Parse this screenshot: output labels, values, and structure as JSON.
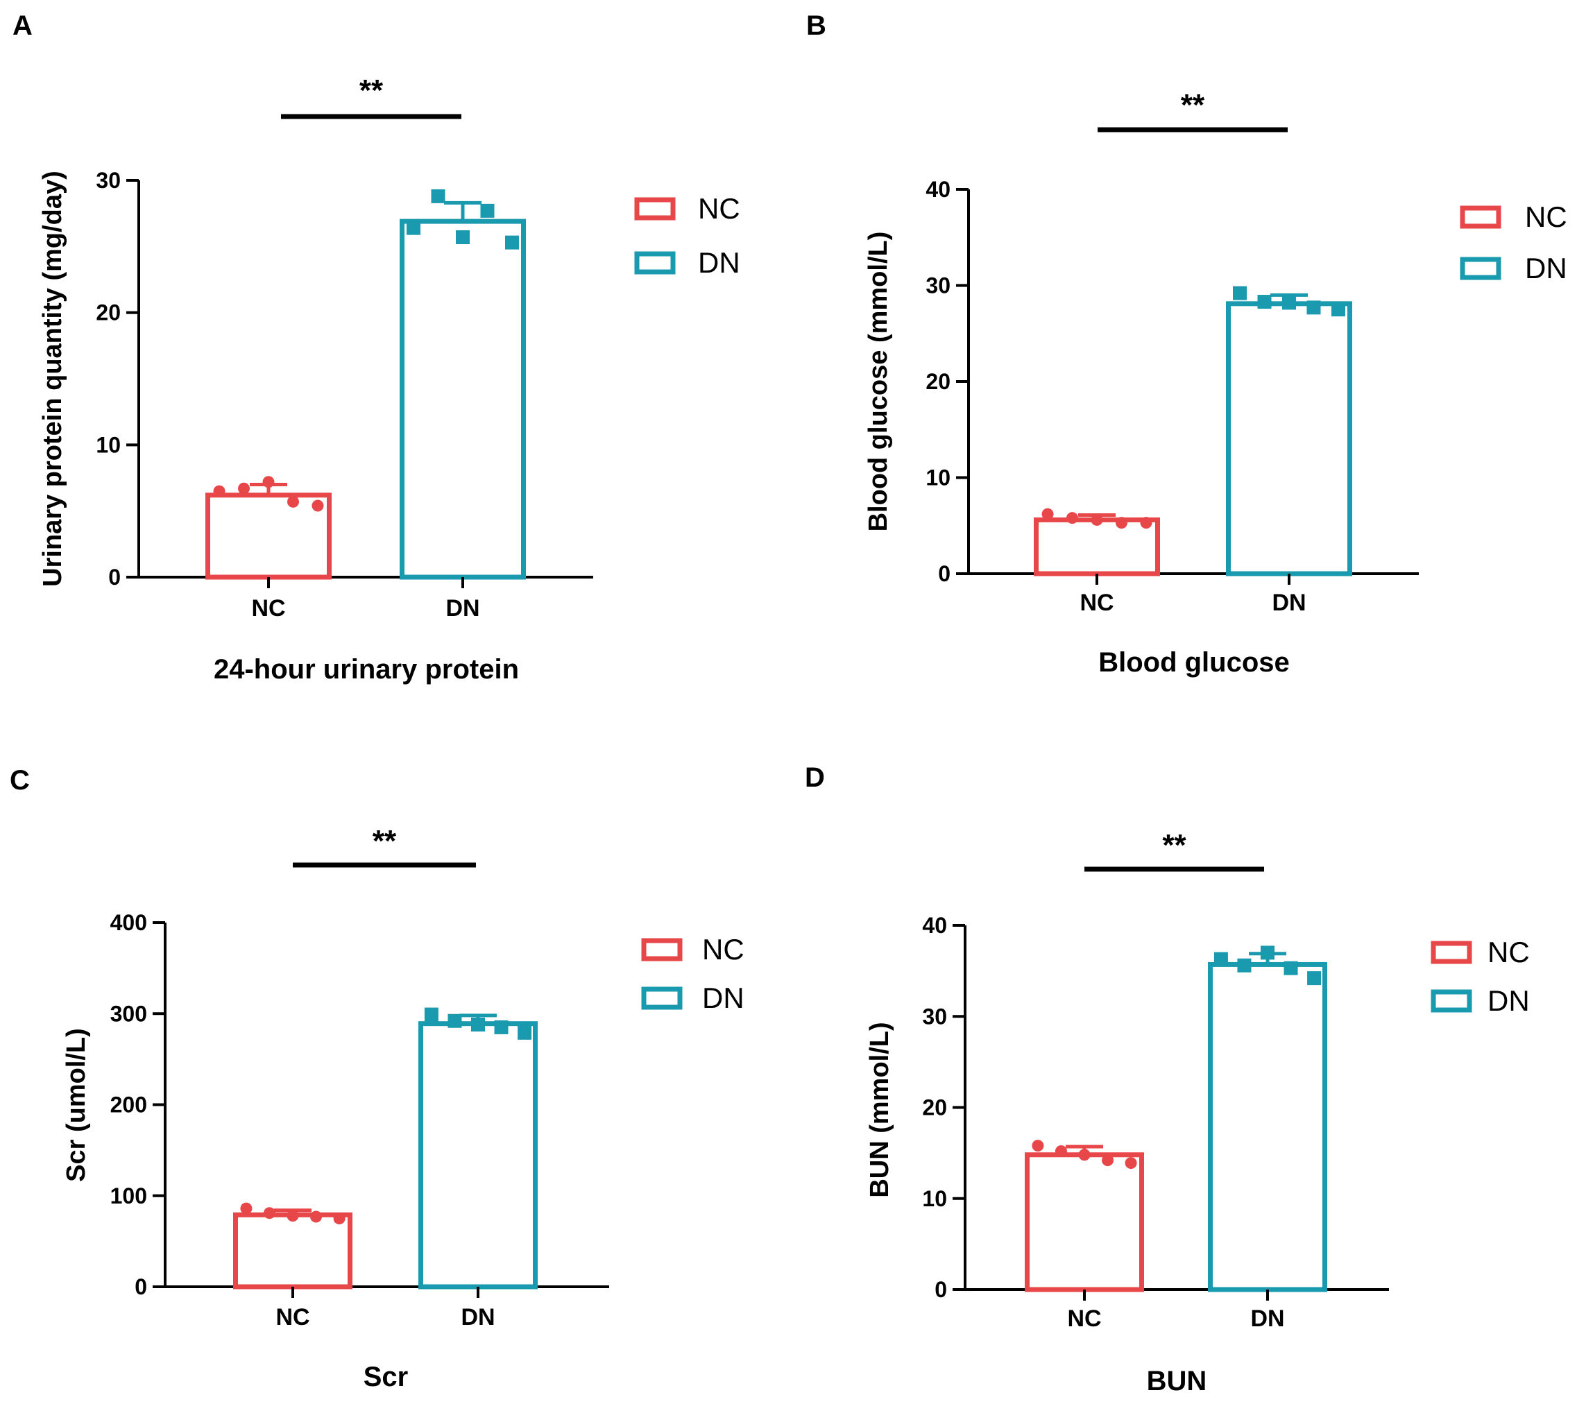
{
  "colors": {
    "NC": "#E8474A",
    "DN": "#1A9AAE",
    "axis": "#000000"
  },
  "chart_data": [
    {
      "panel": "A",
      "type": "bar",
      "title": "24-hour urinary protein",
      "ylabel": "Urinary protein quantity (mg/day)",
      "ylim": [
        0,
        30
      ],
      "yticks": [
        0,
        10,
        20,
        30
      ],
      "categories": [
        "NC",
        "DN"
      ],
      "significance": "**",
      "legend": [
        "NC",
        "DN"
      ],
      "series": [
        {
          "name": "NC",
          "mean": 6.2,
          "sd": 0.8,
          "points": [
            6.5,
            6.7,
            7.2,
            5.7,
            5.4
          ]
        },
        {
          "name": "DN",
          "mean": 26.9,
          "sd": 1.4,
          "points": [
            26.4,
            28.8,
            25.7,
            27.7,
            25.3
          ]
        }
      ]
    },
    {
      "panel": "B",
      "type": "bar",
      "title": "Blood glucose",
      "ylabel": "Blood glucose (mmol/L)",
      "ylim": [
        0,
        40
      ],
      "yticks": [
        0,
        10,
        20,
        30,
        40
      ],
      "categories": [
        "NC",
        "DN"
      ],
      "significance": "**",
      "legend": [
        "NC",
        "DN"
      ],
      "series": [
        {
          "name": "NC",
          "mean": 5.6,
          "sd": 0.5,
          "points": [
            6.2,
            5.8,
            5.6,
            5.3,
            5.3
          ]
        },
        {
          "name": "DN",
          "mean": 28.1,
          "sd": 0.9,
          "points": [
            29.2,
            28.3,
            28.2,
            27.7,
            27.5
          ]
        }
      ]
    },
    {
      "panel": "C",
      "type": "bar",
      "title": "Scr",
      "ylabel": "Scr (umol/L)",
      "ylim": [
        0,
        400
      ],
      "yticks": [
        0,
        100,
        200,
        300,
        400
      ],
      "categories": [
        "NC",
        "DN"
      ],
      "significance": "**",
      "legend": [
        "NC",
        "DN"
      ],
      "series": [
        {
          "name": "NC",
          "mean": 79,
          "sd": 5,
          "points": [
            86,
            81,
            78,
            77,
            75
          ]
        },
        {
          "name": "DN",
          "mean": 289,
          "sd": 9,
          "points": [
            299,
            292,
            288,
            285,
            279
          ]
        }
      ]
    },
    {
      "panel": "D",
      "type": "bar",
      "title": "BUN",
      "ylabel": "BUN (mmol/L)",
      "ylim": [
        0,
        40
      ],
      "yticks": [
        0,
        10,
        20,
        30,
        40
      ],
      "categories": [
        "NC",
        "DN"
      ],
      "significance": "**",
      "legend": [
        "NC",
        "DN"
      ],
      "series": [
        {
          "name": "NC",
          "mean": 14.8,
          "sd": 0.9,
          "points": [
            15.8,
            15.2,
            14.8,
            14.2,
            13.9
          ]
        },
        {
          "name": "DN",
          "mean": 35.7,
          "sd": 1.2,
          "points": [
            36.3,
            35.6,
            37.0,
            35.3,
            34.2
          ]
        }
      ]
    }
  ]
}
